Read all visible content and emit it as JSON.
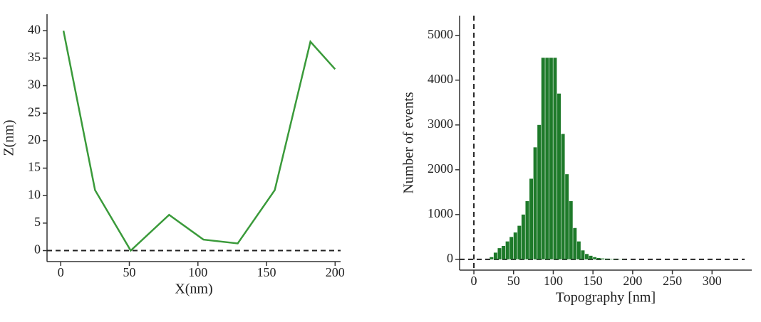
{
  "chart_data": [
    {
      "type": "line",
      "x_label": "X(nm)",
      "y_label": "Z(nm)",
      "x": [
        2,
        25,
        51,
        79,
        104,
        129,
        156,
        182,
        200
      ],
      "values": [
        40,
        11,
        0,
        6.5,
        2,
        1.3,
        11,
        38,
        33
      ],
      "color": "#3a9a3a",
      "xlim": [
        -10,
        204
      ],
      "ylim": [
        -2,
        43
      ],
      "xticks": [
        0,
        50,
        100,
        150,
        200
      ],
      "yticks": [
        0,
        5,
        10,
        15,
        20,
        25,
        30,
        35,
        40
      ]
    },
    {
      "type": "histogram",
      "x_label": "Topography [nm]",
      "y_label": "Number of events",
      "bins": [
        20,
        25,
        30,
        35,
        40,
        45,
        50,
        55,
        60,
        65,
        70,
        75,
        80,
        85,
        90,
        95,
        100,
        105,
        110,
        115,
        120,
        125,
        130,
        135,
        140,
        145,
        150,
        155,
        160,
        165,
        170,
        175,
        180,
        185,
        190
      ],
      "values": [
        50,
        150,
        250,
        300,
        400,
        500,
        600,
        750,
        1000,
        1300,
        1800,
        2500,
        3000,
        4500,
        4500,
        4500,
        4500,
        3700,
        2800,
        1900,
        1300,
        700,
        400,
        200,
        120,
        80,
        50,
        30,
        20,
        15,
        10,
        10,
        5,
        5
      ],
      "color": "#1e7a2a",
      "xlim": [
        -18,
        350
      ],
      "ylim": [
        -240,
        5440
      ],
      "xticks": [
        0,
        50,
        100,
        150,
        200,
        250,
        300
      ],
      "yticks": [
        0,
        1000,
        2000,
        3000,
        4000,
        5000
      ]
    }
  ]
}
